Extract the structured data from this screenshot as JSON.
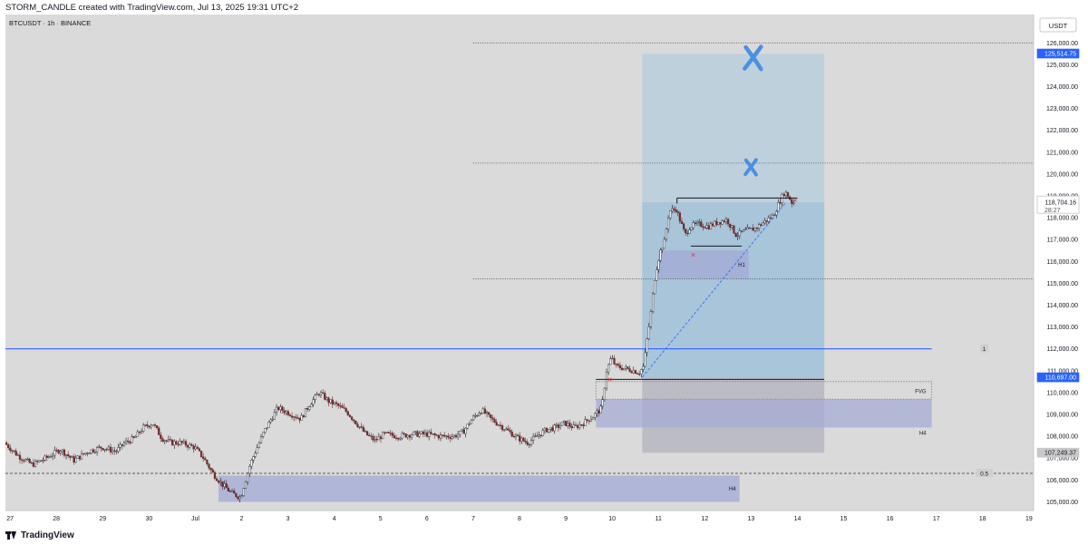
{
  "header": {
    "caption": "STORM_CANDLE created with TradingView.com, Jul 13, 2025 19:31 UTC+2"
  },
  "footer": {
    "brand": "TradingView"
  },
  "colors": {
    "background": "#dadada",
    "bull": "#131722",
    "bear": "#6d2a2a",
    "accent_blue": "#2962ff",
    "target_zone": "#a8c8de",
    "zone_purple": "#a5acd6",
    "stop_zone": "#b6b6bf",
    "marker_blue": "#4a90e2",
    "marker_red": "#e04040"
  },
  "chart_data": {
    "type": "candlestick",
    "title": "BTCUSDT · 1h · BINANCE",
    "currency": "USDT",
    "timeframe": "1h",
    "ylim": [
      104600,
      127300
    ],
    "y_ticks": [
      105000,
      106000,
      107000,
      108000,
      109000,
      110000,
      111000,
      112000,
      113000,
      114000,
      115000,
      116000,
      117000,
      118000,
      119000,
      120000,
      121000,
      122000,
      123000,
      124000,
      125000,
      126000
    ],
    "x_range_days": [
      26.9,
      19.1
    ],
    "x_ticks": [
      {
        "label": "27",
        "day": 27
      },
      {
        "label": "28",
        "day": 28
      },
      {
        "label": "29",
        "day": 29
      },
      {
        "label": "30",
        "day": 30
      },
      {
        "label": "Jul",
        "day": 31
      },
      {
        "label": "2",
        "day": 32
      },
      {
        "label": "3",
        "day": 33
      },
      {
        "label": "4",
        "day": 34
      },
      {
        "label": "5",
        "day": 35
      },
      {
        "label": "6",
        "day": 36
      },
      {
        "label": "7",
        "day": 37
      },
      {
        "label": "8",
        "day": 38
      },
      {
        "label": "9",
        "day": 39
      },
      {
        "label": "10",
        "day": 40
      },
      {
        "label": "11",
        "day": 41
      },
      {
        "label": "12",
        "day": 42
      },
      {
        "label": "13",
        "day": 43
      },
      {
        "label": "14",
        "day": 44
      },
      {
        "label": "15",
        "day": 45
      },
      {
        "label": "16",
        "day": 46
      },
      {
        "label": "17",
        "day": 47
      },
      {
        "label": "18",
        "day": 48
      },
      {
        "label": "19",
        "day": 49
      }
    ],
    "price_path": [
      [
        26.9,
        107700
      ],
      [
        27.2,
        107100
      ],
      [
        27.5,
        106700
      ],
      [
        27.8,
        107000
      ],
      [
        28.1,
        107400
      ],
      [
        28.4,
        106900
      ],
      [
        28.7,
        107300
      ],
      [
        29.0,
        107500
      ],
      [
        29.3,
        107300
      ],
      [
        29.5,
        107700
      ],
      [
        29.7,
        107900
      ],
      [
        29.9,
        108400
      ],
      [
        30.1,
        108600
      ],
      [
        30.3,
        107900
      ],
      [
        30.5,
        107700
      ],
      [
        30.7,
        107700
      ],
      [
        31.0,
        107500
      ],
      [
        31.2,
        107000
      ],
      [
        31.4,
        106300
      ],
      [
        31.6,
        105800
      ],
      [
        31.8,
        105400
      ],
      [
        32.0,
        105200
      ],
      [
        32.2,
        106700
      ],
      [
        32.5,
        108200
      ],
      [
        32.8,
        109300
      ],
      [
        33.1,
        109000
      ],
      [
        33.3,
        108800
      ],
      [
        33.5,
        109500
      ],
      [
        33.7,
        110000
      ],
      [
        33.9,
        109600
      ],
      [
        34.1,
        109400
      ],
      [
        34.3,
        109100
      ],
      [
        34.5,
        108600
      ],
      [
        34.7,
        108100
      ],
      [
        34.9,
        107800
      ],
      [
        35.1,
        108100
      ],
      [
        35.4,
        108000
      ],
      [
        35.7,
        108100
      ],
      [
        36.0,
        108100
      ],
      [
        36.3,
        108000
      ],
      [
        36.6,
        108000
      ],
      [
        36.8,
        108200
      ],
      [
        37.0,
        108800
      ],
      [
        37.2,
        109200
      ],
      [
        37.4,
        108800
      ],
      [
        37.6,
        108500
      ],
      [
        37.8,
        108200
      ],
      [
        38.0,
        107900
      ],
      [
        38.2,
        107700
      ],
      [
        38.4,
        108000
      ],
      [
        38.6,
        108300
      ],
      [
        38.8,
        108400
      ],
      [
        39.0,
        108600
      ],
      [
        39.2,
        108400
      ],
      [
        39.4,
        108600
      ],
      [
        39.6,
        108900
      ],
      [
        39.8,
        109300
      ],
      [
        39.9,
        111000
      ],
      [
        40.0,
        111600
      ],
      [
        40.1,
        111200
      ],
      [
        40.3,
        111100
      ],
      [
        40.5,
        111000
      ],
      [
        40.6,
        110900
      ],
      [
        40.7,
        111200
      ],
      [
        40.78,
        112500
      ],
      [
        40.85,
        113500
      ],
      [
        40.95,
        115400
      ],
      [
        41.05,
        116400
      ],
      [
        41.15,
        116900
      ],
      [
        41.25,
        118300
      ],
      [
        41.4,
        118400
      ],
      [
        41.5,
        117800
      ],
      [
        41.6,
        117200
      ],
      [
        41.7,
        117600
      ],
      [
        41.9,
        117700
      ],
      [
        42.1,
        117600
      ],
      [
        42.3,
        117800
      ],
      [
        42.5,
        117900
      ],
      [
        42.7,
        117200
      ],
      [
        42.9,
        117400
      ],
      [
        43.1,
        117500
      ],
      [
        43.3,
        117800
      ],
      [
        43.5,
        118100
      ],
      [
        43.65,
        118800
      ],
      [
        43.75,
        119200
      ],
      [
        43.85,
        118900
      ],
      [
        43.9,
        118700
      ]
    ],
    "horizontal_levels": [
      {
        "price": 126000,
        "style": "dotted",
        "from_day": 37.0
      },
      {
        "price": 120500,
        "style": "dotted",
        "from_day": 37.0
      },
      {
        "price": 115200,
        "style": "dotted",
        "from_day": 37.0
      },
      {
        "price": 112000,
        "style": "solid_blue",
        "from_day": 26.9,
        "to_day": 46.9
      },
      {
        "price": 106300,
        "style": "dashed",
        "from_day": 26.9
      }
    ],
    "zones": [
      {
        "kind": "target",
        "day_from": 40.65,
        "day_to": 44.58,
        "price_from": 110700,
        "price_to": 125500
      },
      {
        "kind": "target_entry",
        "day_from": 40.65,
        "day_to": 44.58,
        "price_from": 110700,
        "price_to": 118704
      },
      {
        "kind": "stop",
        "day_from": 40.65,
        "day_to": 44.58,
        "price_from": 107249,
        "price_to": 110700
      },
      {
        "kind": "demand_h4",
        "day_from": 39.65,
        "day_to": 46.9,
        "price_from": 108400,
        "price_to": 109700,
        "label": "H4"
      },
      {
        "kind": "fvg",
        "day_from": 39.65,
        "day_to": 46.9,
        "price_from": 109700,
        "price_to": 110500,
        "label": "FVG"
      },
      {
        "kind": "demand_h1",
        "day_from": 41.0,
        "day_to": 42.95,
        "price_from": 115200,
        "price_to": 116500,
        "label": "H1"
      },
      {
        "kind": "demand_h4_low",
        "day_from": 31.5,
        "day_to": 42.75,
        "price_from": 105000,
        "price_to": 106200,
        "label": "H4"
      }
    ],
    "range_lines": [
      {
        "price": 118900,
        "day_from": 41.4,
        "day_to": 44.0
      },
      {
        "price": 116700,
        "day_from": 41.7,
        "day_to": 42.8
      },
      {
        "price": 110600,
        "day_from": 39.65,
        "day_to": 44.58
      }
    ],
    "trendline": {
      "from": [
        40.65,
        110700
      ],
      "to": [
        43.75,
        118700
      ]
    },
    "markers": [
      {
        "kind": "big_x",
        "day": 43.05,
        "price": 125300
      },
      {
        "kind": "small_x",
        "day": 43.0,
        "price": 120300
      }
    ],
    "small_crosses": [
      {
        "day": 39.95,
        "price": 110600
      },
      {
        "day": 41.75,
        "price": 116300
      },
      {
        "day": 43.95,
        "price": 118800
      }
    ],
    "fib_labels": [
      {
        "label": "1",
        "price": 112000
      },
      {
        "label": "0.5",
        "price": 106300
      }
    ],
    "price_labels": [
      {
        "text": "125,514.75",
        "price": 125514.75,
        "style": "blue"
      },
      {
        "text": "118,704.16",
        "price": 118704.16,
        "style": "current",
        "sub": "28:27"
      },
      {
        "text": "110,697.00",
        "price": 110697.0,
        "style": "blue"
      },
      {
        "text": "107,249.37",
        "price": 107249.37,
        "style": "grey"
      }
    ]
  }
}
